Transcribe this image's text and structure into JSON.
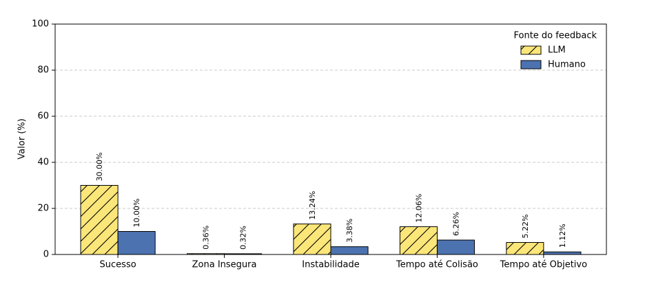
{
  "chart_data": {
    "type": "bar",
    "y_label": "Valor (%)",
    "categories": [
      "Sucesso",
      "Zona Insegura",
      "Instabilidade",
      "Tempo até Colisão",
      "Tempo até Objetivo"
    ],
    "series": [
      {
        "name": "LLM",
        "color": "#fbe67a",
        "hatch": true,
        "values": [
          30.0,
          0.36,
          13.24,
          12.06,
          5.22
        ],
        "value_labels": [
          "30.00%",
          "0.36%",
          "13.24%",
          "12.06%",
          "5.22%"
        ]
      },
      {
        "name": "Humano",
        "color": "#4c72b0",
        "hatch": false,
        "values": [
          10.0,
          0.32,
          3.38,
          6.26,
          1.12
        ],
        "value_labels": [
          "10.00%",
          "0.32%",
          "3.38%",
          "6.26%",
          "1.12%"
        ]
      }
    ],
    "ylim": [
      0,
      100
    ],
    "yticks": [
      0,
      20,
      40,
      60,
      80,
      100
    ],
    "grid": true,
    "legend_title": "Fonte do feedback",
    "legend": "upper right"
  }
}
